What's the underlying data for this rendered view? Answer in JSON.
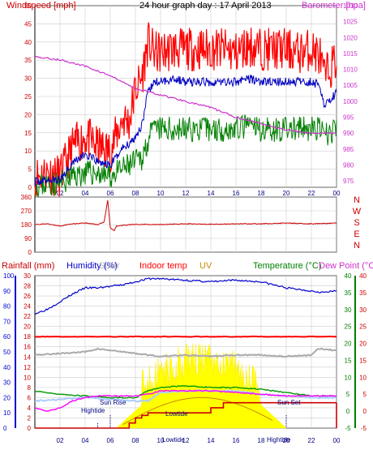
{
  "header": {
    "windspeed_label": "Windspeed [mph]",
    "title": "24 hour graph day : 17 April 2013",
    "barometer_label": "Barometer [hpa]"
  },
  "header2": {
    "rainfall_label": "Rainfall (mm)",
    "humidity_label": "Humidity (%)",
    "solar_label": "Solar",
    "indoor_label": "Indoor temp",
    "uv_label": "UV",
    "temperature_label": "Temperature (°C)",
    "dewpoint_label": "Dew Point (°C)"
  },
  "annotations": {
    "high_tide_1": "Hightide",
    "low_tide_1": "Lowtide",
    "sunrise": "Sun Rise",
    "sunset": "Sun Set",
    "low_tide_2": "Lowtide",
    "high_tide_2": "Hightide"
  },
  "colors": {
    "wind_red": "#ff0000",
    "wind_blue": "#0000c0",
    "wind_green": "#008000",
    "barometer": "#cc33cc",
    "direction": "#cc0000",
    "humidity": "#0000cc",
    "indoor": "#ff0000",
    "dew": "#ff00ff",
    "temperature": "#009900",
    "solar": "#ffff00",
    "uv": "#cc8800",
    "rain": "#cc0000",
    "grey_line": "#aaaaaa",
    "light_blue": "#aaccff",
    "grid": "#cccccc",
    "axis_left": "#0000cc",
    "axis_green": "#008000",
    "axis_red": "#cc0000",
    "baro_axis": "#cc33cc"
  },
  "chart_data": [
    {
      "type": "line",
      "title": "24 hour graph day : 17 April 2013",
      "x_ticks": [
        "02",
        "04",
        "06",
        "08",
        "10",
        "12",
        "14",
        "16",
        "18",
        "20",
        "22",
        "00"
      ],
      "y_left": {
        "label": "Windspeed [mph]",
        "ticks": [
          0,
          5,
          10,
          15,
          20,
          25,
          30,
          35,
          40,
          45,
          50
        ],
        "range": [
          0,
          50
        ]
      },
      "y_right": {
        "label": "Barometer [hpa]",
        "ticks": [
          975,
          980,
          985,
          990,
          995,
          1000,
          1005,
          1010,
          1015,
          1020,
          1025,
          1030
        ],
        "range": [
          973,
          1030
        ]
      },
      "series": [
        {
          "color": "red",
          "hours": [
            0.0,
            1,
            2,
            3,
            4,
            5,
            6,
            7,
            7.5,
            8,
            8.5,
            9,
            9.5,
            10,
            11,
            12,
            13,
            14,
            15,
            16,
            17,
            18,
            19,
            20,
            21,
            22,
            22.7,
            23,
            23.5,
            24
          ],
          "values": [
            3,
            4,
            3,
            11,
            14,
            11,
            10,
            19,
            18,
            27,
            30,
            40,
            37,
            37,
            38,
            38,
            38,
            38,
            38,
            37,
            39,
            38,
            38,
            38,
            37,
            38,
            36,
            30,
            33,
            35
          ]
        },
        {
          "color": "blue",
          "hours": [
            0.0,
            1,
            2,
            3,
            4,
            5,
            6,
            7,
            7.5,
            8,
            8.5,
            9,
            9.5,
            10,
            11,
            12,
            13,
            14,
            15,
            16,
            17,
            18,
            19,
            20,
            21,
            22,
            22.7,
            23,
            23.5,
            24
          ],
          "values": [
            1.5,
            2,
            2,
            7,
            9,
            7,
            6,
            11,
            12,
            14,
            17,
            26,
            29,
            29,
            30,
            29,
            29,
            29,
            29,
            29,
            30,
            29,
            29,
            29,
            29,
            29,
            28,
            23,
            24,
            26
          ]
        },
        {
          "color": "green",
          "hours": [
            0.0,
            1,
            2,
            3,
            4,
            5,
            6,
            7,
            7.5,
            8,
            8.5,
            9,
            9.5,
            10,
            11,
            12,
            13,
            14,
            15,
            16,
            17,
            18,
            19,
            20,
            21,
            22,
            22.7,
            23,
            23.5,
            24
          ],
          "values": [
            0.5,
            1,
            1,
            3,
            4,
            4,
            3,
            5,
            6,
            7,
            8,
            13,
            16,
            16,
            16,
            16,
            16,
            16,
            16,
            16,
            17,
            16,
            16,
            16,
            16,
            16,
            16,
            14,
            15,
            16
          ]
        },
        {
          "color": "magenta",
          "axis": "right",
          "hours": [
            0,
            2,
            4,
            6,
            8,
            10,
            12,
            14,
            16,
            18,
            20,
            22,
            24
          ],
          "values": [
            1014,
            1013,
            1011,
            1008,
            1004,
            1002,
            1000,
            998,
            995,
            993,
            991,
            990,
            990
          ]
        }
      ]
    },
    {
      "type": "line",
      "x_ticks": [
        "02",
        "04",
        "06",
        "08",
        "10",
        "12",
        "14",
        "16",
        "18",
        "20",
        "22",
        "00"
      ],
      "y_left": {
        "ticks": [
          0,
          90,
          180,
          270,
          360
        ],
        "range": [
          0,
          360
        ]
      },
      "y_right": {
        "labels": [
          "N",
          "W",
          "S",
          "E",
          "N"
        ]
      },
      "series": [
        {
          "color": "darkred",
          "hours": [
            0,
            1,
            2,
            3,
            4,
            5,
            5.5,
            5.8,
            6,
            6.3,
            6.5,
            7,
            8,
            10,
            12,
            14,
            16,
            18,
            20,
            22,
            24
          ],
          "values": [
            180,
            185,
            170,
            185,
            190,
            180,
            195,
            340,
            160,
            140,
            170,
            175,
            182,
            180,
            185,
            182,
            185,
            185,
            190,
            185,
            190
          ]
        }
      ]
    },
    {
      "type": "line",
      "x_ticks": [
        "02",
        "04",
        "06",
        "08",
        "10",
        "12",
        "14",
        "16",
        "18",
        "20",
        "22",
        "00"
      ],
      "y_left": {
        "label": "Humidity (%)",
        "ticks": [
          0,
          10,
          20,
          30,
          40,
          50,
          60,
          70,
          80,
          90,
          100
        ],
        "range": [
          0,
          100
        ]
      },
      "y_left2": {
        "label": "Rainfall (mm)",
        "ticks": [
          0,
          2,
          4,
          6,
          8,
          10,
          12,
          14,
          16,
          18,
          20,
          22,
          24,
          26,
          28,
          30
        ],
        "range": [
          0,
          30
        ]
      },
      "y_right": {
        "label": "Temperature (°C)",
        "ticks": [
          -5,
          0,
          5,
          10,
          15,
          20,
          25,
          30,
          35,
          40
        ],
        "range": [
          -5,
          40
        ]
      },
      "y_right2": {
        "label": "Dew Point (°C)",
        "ticks": [
          -5,
          0,
          5,
          10,
          15,
          20,
          25,
          30,
          35,
          40
        ],
        "range": [
          -5,
          40
        ]
      },
      "series": [
        {
          "color": "blue",
          "hours": [
            0,
            1,
            2,
            3,
            4,
            5,
            6,
            7,
            8,
            9,
            10,
            12,
            14,
            16,
            18,
            20,
            21,
            22,
            23,
            24
          ],
          "values": [
            75,
            78,
            83,
            88,
            92,
            92,
            93,
            94,
            96,
            98,
            98,
            97,
            96,
            97,
            96,
            92,
            91,
            90,
            89,
            90
          ]
        },
        {
          "color": "red",
          "hours": [
            0,
            24
          ],
          "values": [
            18,
            18
          ],
          "axis": "rain"
        },
        {
          "color": "gray",
          "hours": [
            0,
            2,
            4,
            5,
            6,
            8,
            10,
            12,
            14,
            16,
            18,
            20,
            22,
            22.5,
            24
          ],
          "values": [
            48,
            49,
            50,
            52,
            51,
            49,
            47,
            48,
            47,
            48,
            48,
            47,
            48,
            52,
            51
          ]
        },
        {
          "color": "green",
          "hours": [
            0,
            2,
            4,
            6,
            8,
            9,
            10,
            12,
            14,
            16,
            18,
            20,
            22,
            24
          ],
          "values": [
            6,
            5,
            4.5,
            4,
            4,
            6,
            7,
            7.5,
            7,
            7,
            6.5,
            5.5,
            4.5,
            4.5
          ]
        },
        {
          "color": "lightblue",
          "hours": [
            0,
            2,
            4,
            6,
            8,
            9,
            10,
            12,
            14,
            16,
            18,
            20,
            22,
            24
          ],
          "values": [
            3,
            3.5,
            4,
            3.5,
            3,
            3,
            5.5,
            6,
            6,
            6,
            5,
            4.5,
            4,
            4
          ]
        },
        {
          "color": "magenta",
          "hours": [
            0,
            1,
            2,
            3,
            4,
            5,
            6,
            7,
            8,
            9,
            10,
            12,
            14,
            16,
            18,
            20,
            22,
            24
          ],
          "values": [
            1,
            0,
            1,
            3,
            4,
            4.5,
            4.5,
            4.5,
            4.5,
            5,
            6,
            6,
            6,
            5.5,
            5,
            4.5,
            4.5,
            4.5
          ]
        },
        {
          "color": "darkred",
          "hours": [
            0,
            7,
            7.5,
            8,
            8.5,
            9,
            10,
            11,
            12,
            13,
            14,
            15,
            16,
            17,
            18,
            19,
            20,
            20.5,
            21,
            22,
            23,
            24
          ],
          "values": [
            0,
            0,
            1,
            2,
            2.5,
            3,
            3,
            3,
            3,
            3,
            4,
            5,
            5,
            5,
            5,
            5,
            5,
            5,
            5,
            5,
            5,
            5
          ],
          "axis": "rain"
        }
      ]
    }
  ]
}
